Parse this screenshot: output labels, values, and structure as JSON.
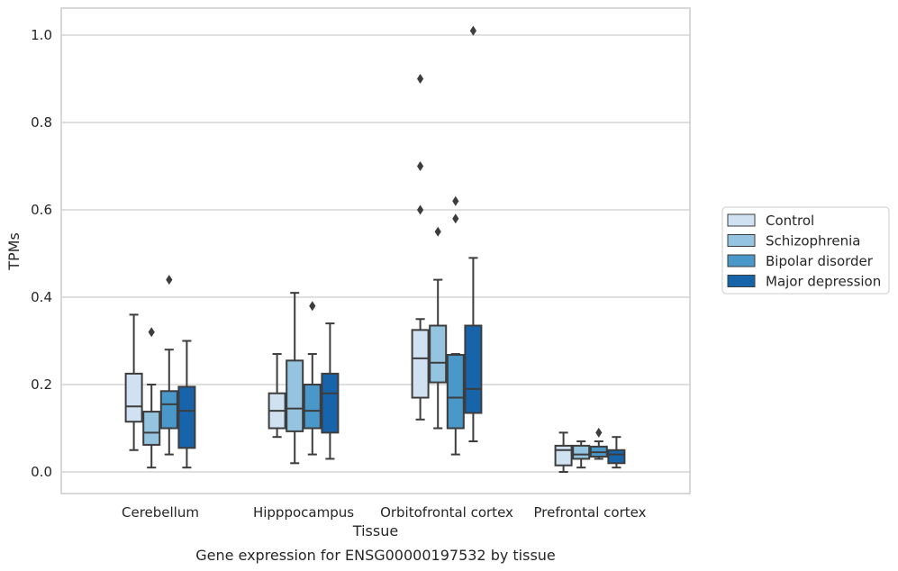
{
  "chart_data": {
    "type": "box",
    "caption": "Gene expression for ENSG00000197532 by tissue",
    "xlabel": "Tissue",
    "ylabel": "TPMs",
    "ylim": [
      -0.05,
      1.06
    ],
    "yticks": [
      0.0,
      0.2,
      0.4,
      0.6,
      0.8,
      1.0
    ],
    "ytick_labels": [
      "0.0",
      "0.2",
      "0.4",
      "0.6",
      "0.8",
      "1.0"
    ],
    "grid": "horizontal",
    "legend_position": "right",
    "categories": [
      "Cerebellum",
      "Hipppocampus",
      "Orbitofrontal cortex",
      "Prefrontal cortex"
    ],
    "series": [
      {
        "name": "Control",
        "color": "#d0e1f2",
        "boxes": [
          {
            "whislo": 0.05,
            "q1": 0.115,
            "med": 0.15,
            "q3": 0.225,
            "whishi": 0.36,
            "fliers": []
          },
          {
            "whislo": 0.08,
            "q1": 0.1,
            "med": 0.14,
            "q3": 0.18,
            "whishi": 0.27,
            "fliers": []
          },
          {
            "whislo": 0.12,
            "q1": 0.17,
            "med": 0.26,
            "q3": 0.325,
            "whishi": 0.35,
            "fliers": [
              0.6,
              0.7,
              0.9
            ]
          },
          {
            "whislo": 0.0,
            "q1": 0.015,
            "med": 0.05,
            "q3": 0.06,
            "whishi": 0.09,
            "fliers": []
          }
        ]
      },
      {
        "name": "Schizophrenia",
        "color": "#94c4df",
        "boxes": [
          {
            "whislo": 0.01,
            "q1": 0.062,
            "med": 0.09,
            "q3": 0.138,
            "whishi": 0.2,
            "fliers": [
              0.32
            ]
          },
          {
            "whislo": 0.02,
            "q1": 0.093,
            "med": 0.145,
            "q3": 0.255,
            "whishi": 0.41,
            "fliers": []
          },
          {
            "whislo": 0.1,
            "q1": 0.205,
            "med": 0.25,
            "q3": 0.335,
            "whishi": 0.44,
            "fliers": [
              0.55
            ]
          },
          {
            "whislo": 0.01,
            "q1": 0.03,
            "med": 0.04,
            "q3": 0.06,
            "whishi": 0.07,
            "fliers": []
          }
        ]
      },
      {
        "name": "Bipolar disorder",
        "color": "#4a98c9",
        "boxes": [
          {
            "whislo": 0.04,
            "q1": 0.1,
            "med": 0.155,
            "q3": 0.185,
            "whishi": 0.28,
            "fliers": [
              0.44
            ]
          },
          {
            "whislo": 0.04,
            "q1": 0.1,
            "med": 0.14,
            "q3": 0.2,
            "whishi": 0.27,
            "fliers": [
              0.38
            ]
          },
          {
            "whislo": 0.04,
            "q1": 0.1,
            "med": 0.17,
            "q3": 0.268,
            "whishi": 0.27,
            "fliers": [
              0.58,
              0.62
            ]
          },
          {
            "whislo": 0.03,
            "q1": 0.035,
            "med": 0.045,
            "q3": 0.058,
            "whishi": 0.07,
            "fliers": [
              0.09
            ]
          }
        ]
      },
      {
        "name": "Major depression",
        "color": "#1764ab",
        "boxes": [
          {
            "whislo": 0.01,
            "q1": 0.055,
            "med": 0.14,
            "q3": 0.195,
            "whishi": 0.3,
            "fliers": []
          },
          {
            "whislo": 0.03,
            "q1": 0.09,
            "med": 0.18,
            "q3": 0.225,
            "whishi": 0.34,
            "fliers": []
          },
          {
            "whislo": 0.07,
            "q1": 0.135,
            "med": 0.19,
            "q3": 0.335,
            "whishi": 0.49,
            "fliers": [
              1.01
            ]
          },
          {
            "whislo": 0.01,
            "q1": 0.02,
            "med": 0.04,
            "q3": 0.05,
            "whishi": 0.08,
            "fliers": []
          }
        ]
      }
    ]
  }
}
